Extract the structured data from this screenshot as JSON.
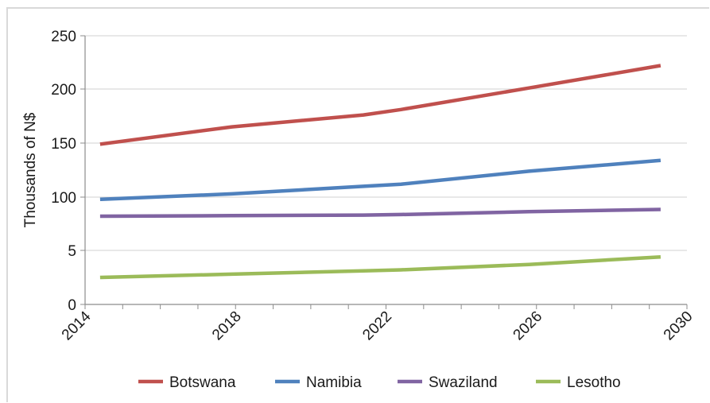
{
  "chart_data": {
    "type": "line",
    "title": "",
    "xlabel": "",
    "ylabel": "Thousands of N$",
    "x_ticks": [
      "2014",
      "2018",
      "2022",
      "2026",
      "2030"
    ],
    "y_ticks": [
      "0",
      "5",
      "100",
      "150",
      "200",
      "250"
    ],
    "x": [
      2014.4,
      2017.9,
      2021.4,
      2022.4,
      2025.8,
      2029.3
    ],
    "grid": true,
    "legend": "bottom",
    "series": [
      {
        "name": "Botswana",
        "color": "#c0504d",
        "values": [
          149,
          165,
          176,
          181,
          201,
          222
        ]
      },
      {
        "name": "Namibia",
        "color": "#4f81bd",
        "values": [
          96,
          103,
          110,
          112,
          124,
          134
        ]
      },
      {
        "name": "Swaziland",
        "color": "#8064a2",
        "values": [
          66,
          67,
          68,
          69,
          74,
          78
        ]
      },
      {
        "name": "Lesotho",
        "color": "#9bbb59",
        "values": [
          2.5,
          2.8,
          3.1,
          3.2,
          3.7,
          4.4
        ]
      }
    ]
  }
}
